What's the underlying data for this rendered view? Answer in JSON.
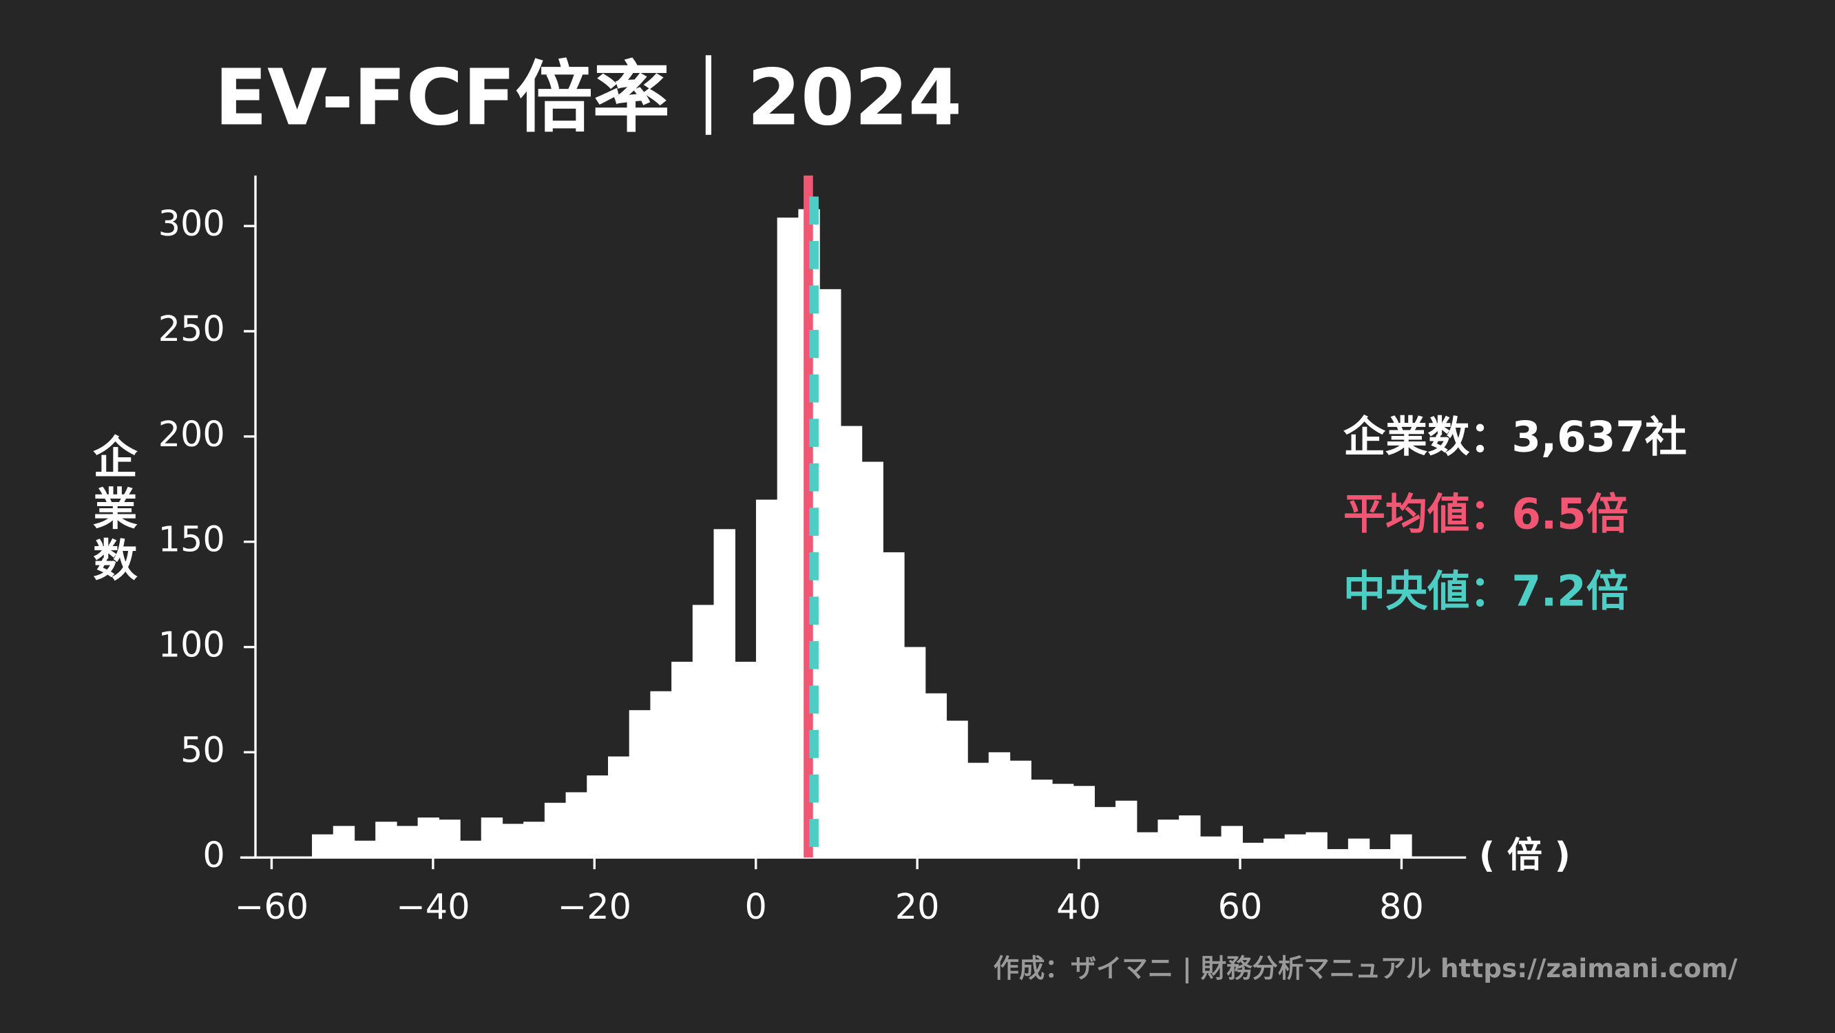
{
  "chart_data": {
    "type": "histogram",
    "title": "EV-FCF倍率｜2024",
    "y_label": "企業数",
    "x_unit_label": "( 倍 )",
    "footer": "作成：ザイマニ | 財務分析マニュアル https://zaimani.com/",
    "bins": [
      -55,
      -52.38,
      -49.76,
      -47.14,
      -44.52,
      -41.9,
      -39.28,
      -36.66,
      -34.04,
      -31.42,
      -28.8,
      -26.18,
      -23.56,
      -20.94,
      -18.32,
      -15.7,
      -13.08,
      -10.46,
      -7.84,
      -5.22,
      -2.6,
      0.02,
      2.64,
      5.26,
      7.88,
      10.5,
      13.12,
      15.74,
      18.36,
      20.98,
      23.6,
      26.22,
      28.84,
      31.46,
      34.08,
      36.7,
      39.32,
      41.94,
      44.56,
      47.18,
      49.8,
      52.42,
      55.04,
      57.66,
      60.28,
      62.9,
      65.52,
      68.14,
      70.76,
      73.38,
      76.0,
      78.62,
      81.24
    ],
    "counts": [
      11,
      15,
      8,
      17,
      15,
      19,
      18,
      8,
      19,
      16,
      17,
      26,
      31,
      39,
      48,
      70,
      79,
      93,
      120,
      156,
      93,
      170,
      304,
      308,
      270,
      205,
      188,
      145,
      100,
      78,
      65,
      45,
      50,
      46,
      37,
      35,
      34,
      24,
      27,
      12,
      18,
      20,
      10,
      15,
      7,
      9,
      11,
      12,
      4,
      9,
      4,
      11
    ],
    "color": "#ffffff",
    "mean": 6.5,
    "mean_color": "#f25673",
    "median": 7.2,
    "median_color": "#4ecdc4",
    "annotations": [
      {
        "text": "企業数：3,637社",
        "color": "#ffffff"
      },
      {
        "text": "平均値：6.5倍",
        "color": "#f25673"
      },
      {
        "text": "中央値：7.2倍",
        "color": "#4ecdc4"
      }
    ],
    "xlim": [
      -62,
      88
    ],
    "ylim": [
      0,
      324
    ],
    "xticks": [
      {
        "value": -60,
        "label": "−60"
      },
      {
        "value": -40,
        "label": "−40"
      },
      {
        "value": -20,
        "label": "−20"
      },
      0,
      20,
      40,
      60,
      80
    ],
    "yticks": [
      0,
      50,
      100,
      150,
      200,
      250,
      300
    ]
  }
}
